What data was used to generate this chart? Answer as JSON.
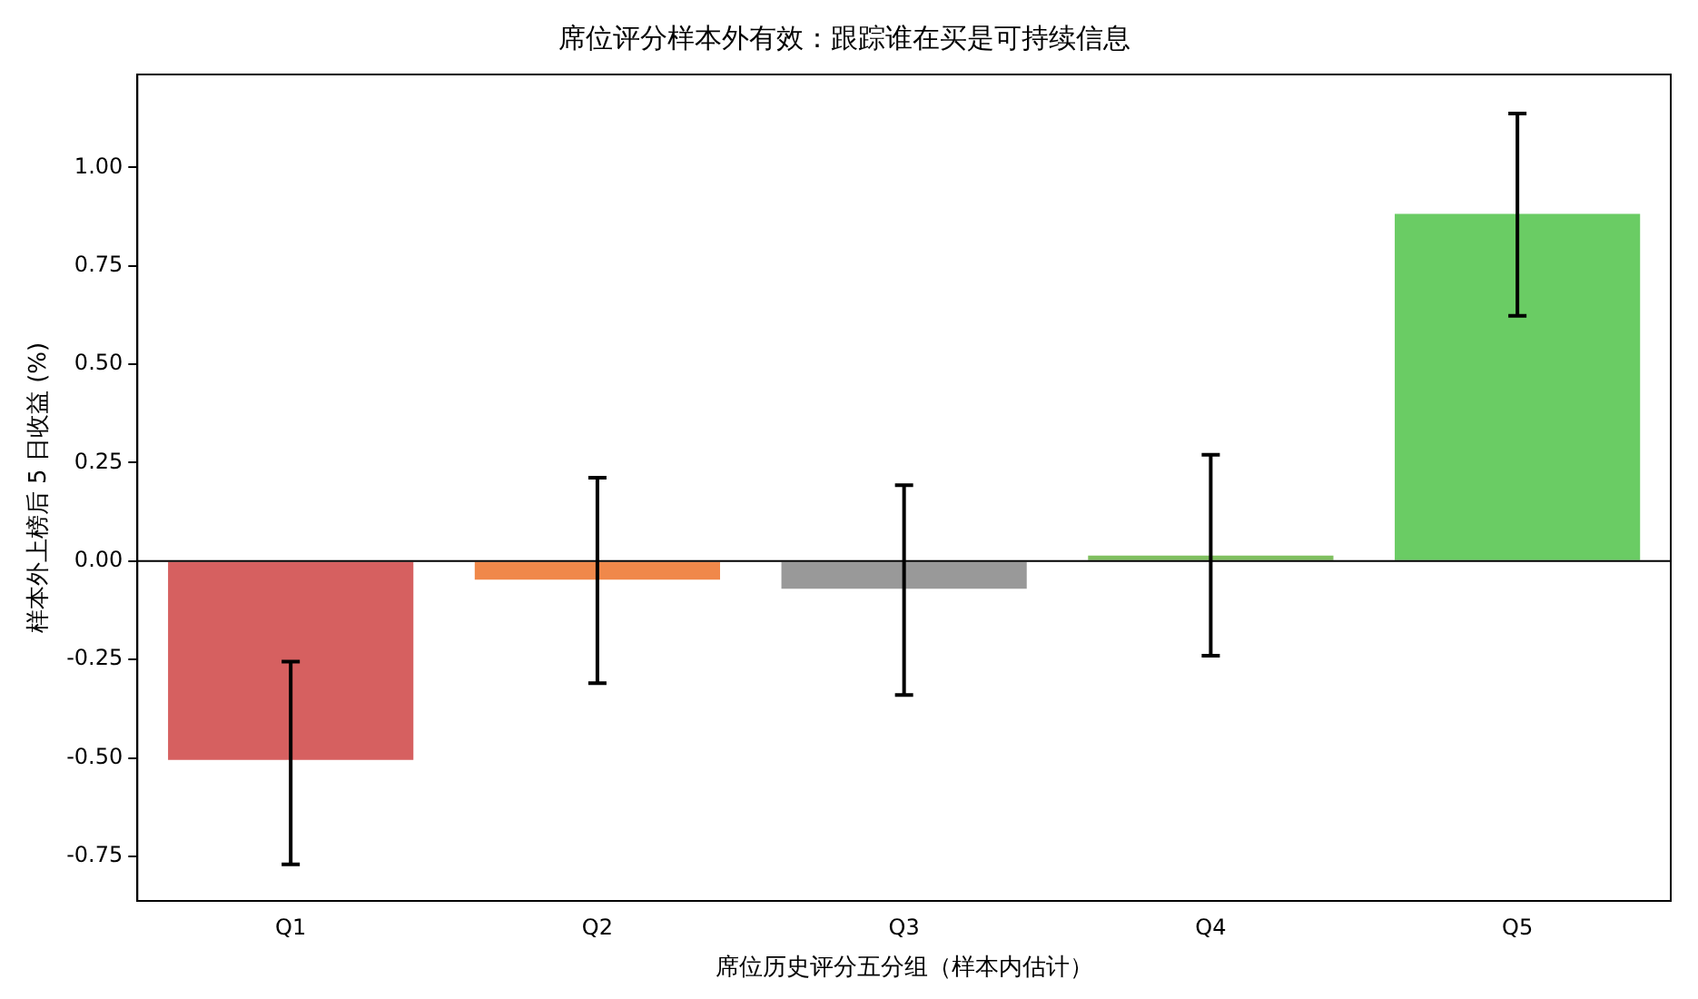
{
  "chart_data": {
    "type": "bar",
    "title": "席位评分样本外有效：跟踪谁在买是可持续信息",
    "xlabel": "席位历史评分五分组（样本内估计）",
    "ylabel": "样本外上榜后 5 日收益 (%)",
    "categories": [
      "Q1",
      "Q2",
      "Q3",
      "Q4",
      "Q5"
    ],
    "values": [
      -0.505,
      -0.047,
      -0.07,
      0.014,
      0.882
    ],
    "colors": [
      "#d66060",
      "#f0884a",
      "#999999",
      "#80c060",
      "#6acc64"
    ],
    "errors": [
      [
        -0.77,
        -0.255
      ],
      [
        -0.31,
        0.212
      ],
      [
        -0.34,
        0.193
      ],
      [
        -0.24,
        0.27
      ],
      [
        0.623,
        1.137
      ]
    ],
    "ylim": [
      -0.863,
      1.236
    ],
    "yticks": [
      {
        "value": -0.75,
        "label": "-0.75"
      },
      {
        "value": -0.5,
        "label": "-0.50"
      },
      {
        "value": -0.25,
        "label": "-0.25"
      },
      {
        "value": 0,
        "label": "0.00"
      },
      {
        "value": 0.25,
        "label": "0.25"
      },
      {
        "value": 0.5,
        "label": "0.50"
      },
      {
        "value": 0.75,
        "label": "0.75"
      },
      {
        "value": 1,
        "label": "1.00"
      }
    ],
    "ref_lines": [
      {
        "axis": "y",
        "value": 0,
        "color": "#000000"
      }
    ],
    "grid": false,
    "legend": false
  }
}
